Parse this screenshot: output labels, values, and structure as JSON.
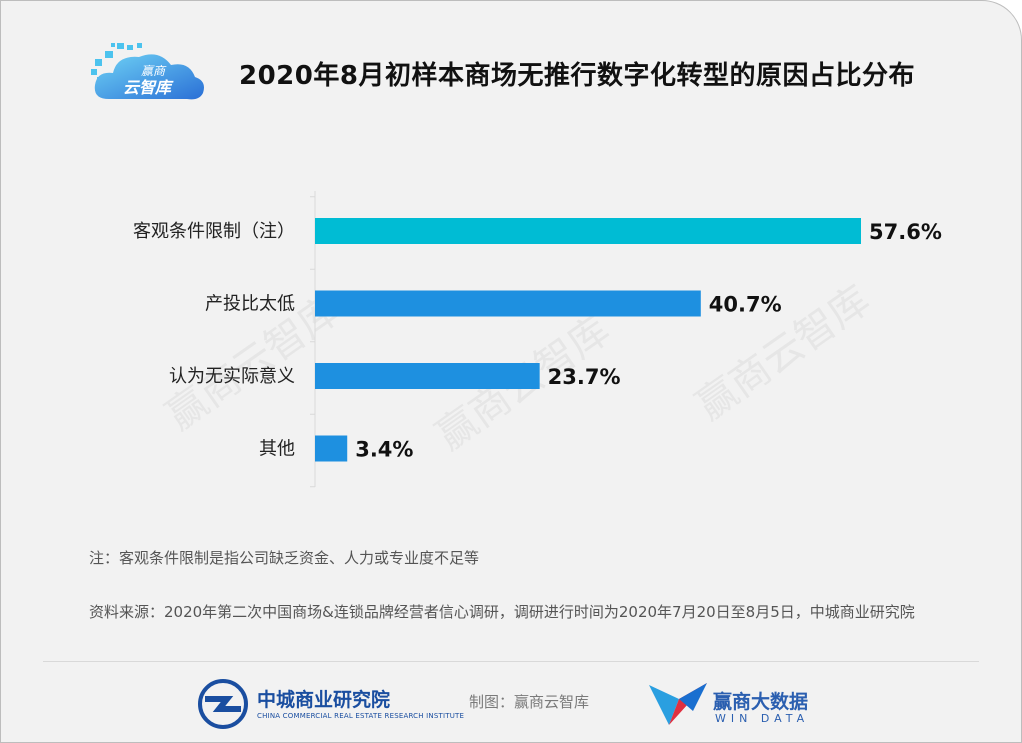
{
  "logo": {
    "line1": "赢商",
    "line2": "云智库"
  },
  "title": "2020年8月初样本商场无推行数字化转型的原因占比分布",
  "chart_data": {
    "type": "bar",
    "orientation": "horizontal",
    "categories": [
      "客观条件限制（注）",
      "产投比太低",
      "认为无实际意义",
      "其他"
    ],
    "values": [
      57.6,
      40.7,
      23.7,
      3.4
    ],
    "value_labels": [
      "57.6%",
      "40.7%",
      "23.7%",
      "3.4%"
    ],
    "bar_colors": [
      "#00bcd4",
      "#1e90e0",
      "#1e90e0",
      "#1e90e0"
    ],
    "xlim": [
      0,
      60
    ],
    "grid": false,
    "legend": "none"
  },
  "watermark": "赢商云智库",
  "note": "注：客观条件限制是指公司缺乏资金、人力或专业度不足等",
  "source": "资料来源：2020年第二次中国商场&连锁品牌经营者信心调研，调研进行时间为2020年7月20日至8月5日，中城商业研究院",
  "footer": {
    "org_cn": "中城商业研究院",
    "org_en": "CHINA COMMERCIAL REAL ESTATE RESEARCH INSTITUTE",
    "credit": "制图：赢商云智库",
    "brand_cn": "赢商大数据",
    "brand_en": "WIN DATA"
  }
}
